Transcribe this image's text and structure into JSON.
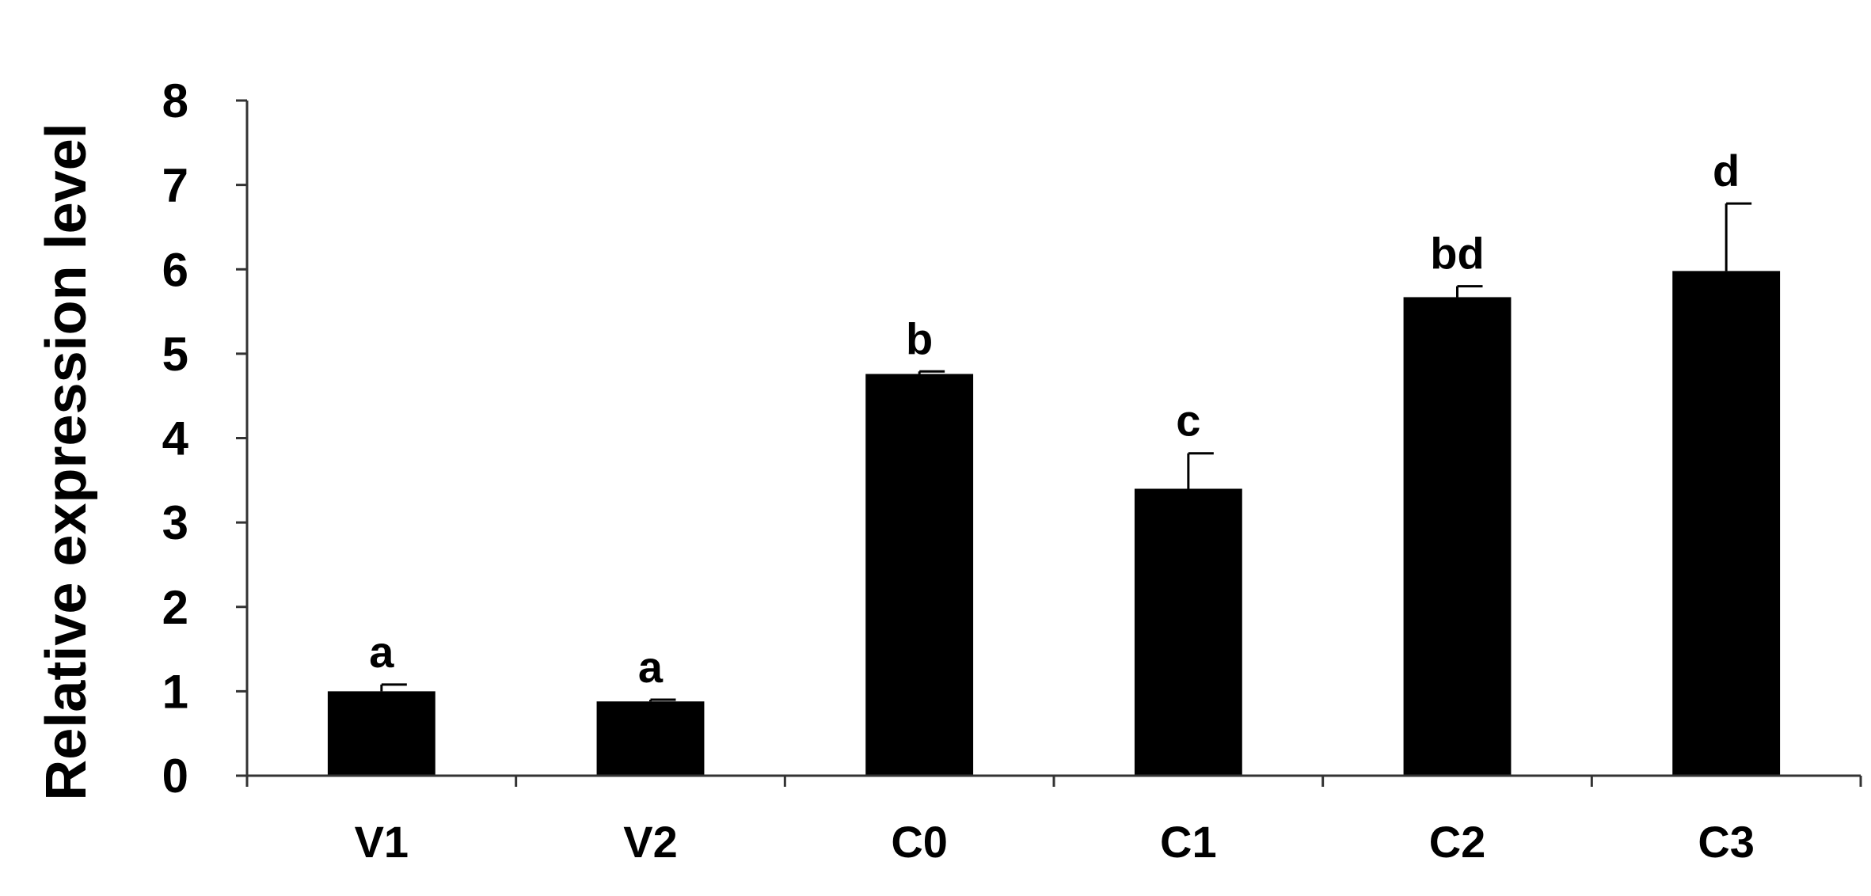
{
  "chart_data": {
    "type": "bar",
    "title": "",
    "xlabel": "",
    "ylabel": "Relative expression level",
    "ylim": [
      0,
      8
    ],
    "yticks": [
      "0",
      "1",
      "2",
      "3",
      "4",
      "5",
      "6",
      "7",
      "8"
    ],
    "categories": [
      "V1",
      "V2",
      "C0",
      "C1",
      "C2",
      "C3"
    ],
    "values": [
      1.0,
      0.88,
      4.76,
      3.4,
      5.67,
      5.98
    ],
    "errors": [
      0.08,
      0.02,
      0.03,
      0.42,
      0.13,
      0.8
    ],
    "significance_labels": [
      "a",
      "a",
      "b",
      "c",
      "bd",
      "d"
    ],
    "grid": false,
    "legend": "none",
    "colors": {
      "bar": "#000000",
      "axis": "#333333",
      "text": "#000000",
      "background": "#ffffff"
    }
  }
}
